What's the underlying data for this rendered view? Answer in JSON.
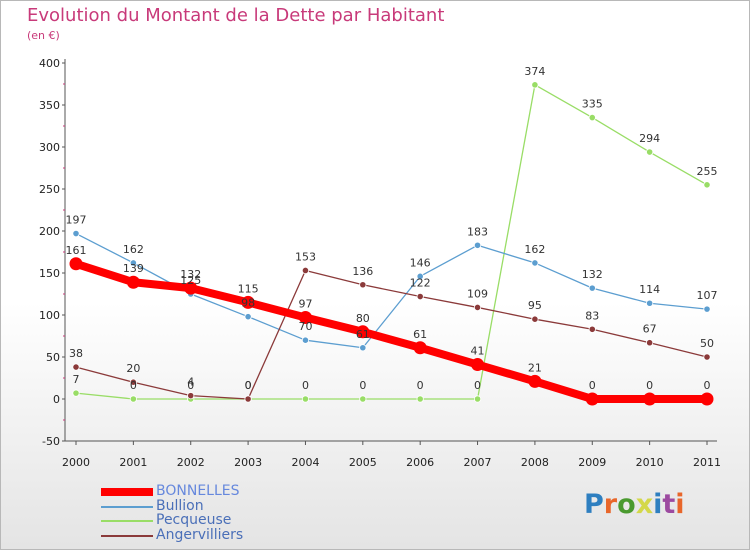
{
  "title": "Evolution du Montant de la Dette par Habitant",
  "unit": "(en €)",
  "logo": {
    "letters": [
      "P",
      "r",
      "o",
      "x",
      "i",
      "t",
      "i"
    ],
    "colors": [
      "#2e7fc0",
      "#e8662a",
      "#4a9a2f",
      "#d4d84a",
      "#2e7fc0",
      "#9c4aa0",
      "#e8662a"
    ]
  },
  "chart_data": {
    "type": "line",
    "x": [
      "2000",
      "2001",
      "2002",
      "2003",
      "2004",
      "2005",
      "2006",
      "2007",
      "2008",
      "2009",
      "2010",
      "2011"
    ],
    "ylim": [
      -50,
      400
    ],
    "yticks": [
      "-50",
      "0",
      "50",
      "100",
      "150",
      "200",
      "250",
      "300",
      "350",
      "400"
    ],
    "grid": false,
    "legend_position": "bottom-left",
    "series": [
      {
        "name": "BONNELLES",
        "color": "#ff0000",
        "values": [
          161,
          139,
          132,
          115,
          97,
          80,
          61,
          41,
          21,
          0,
          0,
          0
        ]
      },
      {
        "name": "Bullion",
        "color": "#5c9ed0",
        "values": [
          197,
          162,
          125,
          98,
          70,
          61,
          146,
          183,
          162,
          132,
          114,
          107
        ]
      },
      {
        "name": "Pecqueuse",
        "color": "#99dd66",
        "values": [
          7,
          0,
          0,
          0,
          0,
          0,
          0,
          0,
          374,
          335,
          294,
          255
        ]
      },
      {
        "name": "Angervilliers",
        "color": "#8b3a3a",
        "values": [
          38,
          20,
          4,
          0,
          153,
          136,
          122,
          109,
          95,
          83,
          67,
          50
        ]
      }
    ],
    "point_labels": [
      [
        161,
        139,
        132,
        115,
        97,
        80,
        61,
        41,
        21,
        0,
        0,
        0
      ],
      [
        197,
        162,
        125,
        98,
        70,
        61,
        146,
        183,
        162,
        132,
        114,
        107
      ],
      [
        7,
        0,
        0,
        0,
        0,
        0,
        0,
        0,
        374,
        335,
        294,
        255
      ],
      [
        38,
        20,
        4,
        0,
        153,
        136,
        122,
        109,
        95,
        83,
        67,
        50
      ]
    ]
  }
}
